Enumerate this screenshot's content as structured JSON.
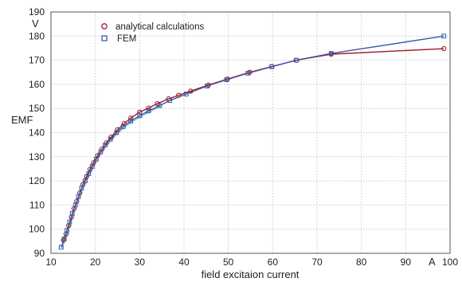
{
  "chart_data": {
    "type": "line",
    "xlabel": "field excitaion current",
    "ylabel": "EMF",
    "x_unit": "A",
    "y_unit": "V",
    "xlim": [
      10,
      100
    ],
    "ylim": [
      90,
      190
    ],
    "x_ticks": [
      "10",
      "20",
      "30",
      "40",
      "50",
      "60",
      "70",
      "80",
      "90",
      "100"
    ],
    "y_ticks": [
      "90",
      "100",
      "110",
      "120",
      "130",
      "140",
      "150",
      "160",
      "170",
      "180",
      "190"
    ],
    "grid": true,
    "legend_position": "top-left",
    "series": [
      {
        "name": "analytical calculations",
        "marker": "circle",
        "color": "#a01c2c",
        "x": [
          12.8,
          13.4,
          14.0,
          14.6,
          15.2,
          15.8,
          16.5,
          17.2,
          18.0,
          18.8,
          19.6,
          20.5,
          21.5,
          22.5,
          23.6,
          25.0,
          26.5,
          28.0,
          30.0,
          32.0,
          34.0,
          36.5,
          38.8,
          41.5,
          45.5,
          49.8,
          54.8,
          59.8,
          65.4,
          73.2,
          98.6
        ],
        "y": [
          95.5,
          98.0,
          101.5,
          105.0,
          108.5,
          111.5,
          115.0,
          118.5,
          121.8,
          124.8,
          127.5,
          130.5,
          133.2,
          135.8,
          138.2,
          141.2,
          143.8,
          146.0,
          148.5,
          150.2,
          152.0,
          154.0,
          155.5,
          157.2,
          159.7,
          162.2,
          165.0,
          167.4,
          170.0,
          172.5,
          174.8
        ]
      },
      {
        "name": "FEM",
        "marker": "square",
        "color": "#3a5aa8",
        "x": [
          12.3,
          13.0,
          13.6,
          14.2,
          14.8,
          15.5,
          16.2,
          16.9,
          17.7,
          18.5,
          19.3,
          20.2,
          21.2,
          22.2,
          23.4,
          24.8,
          26.3,
          28.0,
          30.0,
          32.0,
          34.5,
          36.8,
          40.5,
          45.2,
          49.6,
          54.4,
          59.8,
          65.3,
          73.2,
          98.6
        ],
        "y": [
          92.5,
          96.0,
          99.5,
          103.0,
          106.5,
          110.0,
          113.5,
          117.0,
          120.0,
          123.0,
          126.0,
          129.0,
          132.0,
          134.8,
          137.3,
          140.0,
          142.5,
          144.8,
          147.0,
          149.0,
          151.2,
          153.3,
          156.0,
          159.3,
          161.9,
          164.6,
          167.3,
          170.0,
          172.8,
          180.0
        ]
      }
    ]
  }
}
